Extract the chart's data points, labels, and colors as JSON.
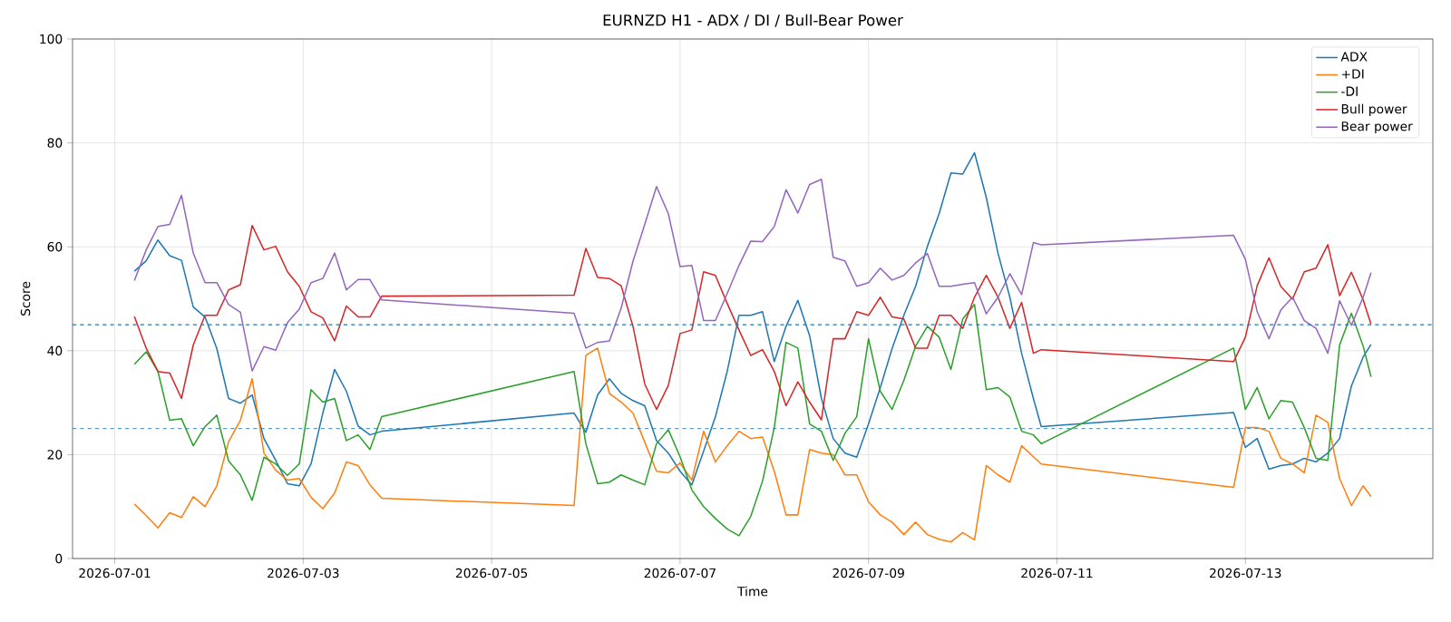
{
  "chart_data": {
    "type": "line",
    "title": "EURNZD H1 - ADX / DI / Bull-Bear Power",
    "xlabel": "Time",
    "ylabel": "Score",
    "x": [
      "2026-07-01T05:00",
      "2026-07-01T08:00",
      "2026-07-01T11:00",
      "2026-07-01T14:00",
      "2026-07-01T17:00",
      "2026-07-01T20:00",
      "2026-07-01T23:00",
      "2026-07-02T02:00",
      "2026-07-02T05:00",
      "2026-07-02T08:00",
      "2026-07-02T11:00",
      "2026-07-02T14:00",
      "2026-07-02T17:00",
      "2026-07-02T20:00",
      "2026-07-02T23:00",
      "2026-07-03T02:00",
      "2026-07-03T05:00",
      "2026-07-03T08:00",
      "2026-07-03T11:00",
      "2026-07-03T14:00",
      "2026-07-03T17:00",
      "2026-07-03T20:00",
      "2026-07-05T21:00",
      "2026-07-06T00:00",
      "2026-07-06T03:00",
      "2026-07-06T06:00",
      "2026-07-06T09:00",
      "2026-07-06T12:00",
      "2026-07-06T15:00",
      "2026-07-06T18:00",
      "2026-07-06T21:00",
      "2026-07-07T00:00",
      "2026-07-07T03:00",
      "2026-07-07T06:00",
      "2026-07-07T09:00",
      "2026-07-07T12:00",
      "2026-07-07T15:00",
      "2026-07-07T18:00",
      "2026-07-07T21:00",
      "2026-07-08T00:00",
      "2026-07-08T03:00",
      "2026-07-08T06:00",
      "2026-07-08T09:00",
      "2026-07-08T12:00",
      "2026-07-08T15:00",
      "2026-07-08T18:00",
      "2026-07-08T21:00",
      "2026-07-09T00:00",
      "2026-07-09T03:00",
      "2026-07-09T06:00",
      "2026-07-09T09:00",
      "2026-07-09T12:00",
      "2026-07-09T15:00",
      "2026-07-09T18:00",
      "2026-07-09T21:00",
      "2026-07-10T00:00",
      "2026-07-10T03:00",
      "2026-07-10T06:00",
      "2026-07-10T09:00",
      "2026-07-10T12:00",
      "2026-07-10T15:00",
      "2026-07-10T18:00",
      "2026-07-10T20:00",
      "2026-07-12T21:00",
      "2026-07-13T00:00",
      "2026-07-13T03:00",
      "2026-07-13T06:00",
      "2026-07-13T09:00",
      "2026-07-13T12:00",
      "2026-07-13T15:00",
      "2026-07-13T18:00",
      "2026-07-13T21:00",
      "2026-07-14T00:00",
      "2026-07-14T03:00",
      "2026-07-14T06:00",
      "2026-07-14T08:00"
    ],
    "series": [
      {
        "name": "ADX",
        "color": "#1f77b4",
        "values": [
          55.3,
          57.3,
          61.3,
          58.3,
          57.4,
          48.4,
          46.5,
          40.4,
          30.8,
          29.9,
          31.5,
          23.1,
          18.9,
          14.4,
          14.0,
          18.2,
          28.0,
          36.4,
          32.2,
          25.5,
          23.8,
          24.5,
          28.0,
          24.3,
          31.5,
          34.6,
          31.8,
          30.4,
          29.4,
          22.7,
          20.3,
          16.8,
          14.2,
          20.7,
          27.3,
          36.0,
          46.8,
          46.8,
          47.5,
          37.9,
          44.7,
          49.7,
          42.9,
          30.8,
          23.1,
          20.3,
          19.5,
          25.9,
          32.9,
          40.4,
          46.8,
          52.4,
          60.1,
          66.4,
          74.2,
          74.0,
          78.1,
          69.5,
          58.7,
          50.3,
          39.5,
          30.8,
          25.4,
          28.1,
          21.4,
          23.1,
          17.2,
          17.9,
          18.2,
          19.3,
          18.6,
          20.3,
          23.1,
          33.2,
          38.8,
          41.2
        ]
      },
      {
        "name": "+DI",
        "color": "#ff7f0e",
        "values": [
          10.5,
          8.3,
          5.9,
          8.8,
          7.9,
          11.9,
          10.0,
          14.0,
          22.5,
          26.6,
          34.6,
          20.3,
          17.0,
          15.1,
          15.4,
          11.8,
          9.6,
          12.6,
          18.6,
          17.9,
          14.2,
          11.6,
          10.2,
          39.1,
          40.5,
          31.8,
          30.1,
          28.0,
          22.4,
          16.8,
          16.5,
          18.4,
          15.1,
          24.5,
          18.6,
          21.7,
          24.5,
          23.1,
          23.4,
          16.8,
          8.4,
          8.4,
          21.0,
          20.3,
          20.0,
          16.1,
          16.1,
          10.9,
          8.4,
          7.0,
          4.6,
          7.0,
          4.6,
          3.7,
          3.2,
          5.0,
          3.6,
          17.9,
          16.1,
          14.7,
          21.7,
          19.6,
          18.2,
          13.7,
          25.2,
          25.2,
          24.5,
          19.3,
          18.2,
          16.5,
          27.6,
          26.2,
          15.4,
          10.2,
          14.0,
          11.9
        ]
      },
      {
        "name": "-DI",
        "color": "#2ca02c",
        "values": [
          37.4,
          39.8,
          36.0,
          26.6,
          26.9,
          21.7,
          25.4,
          27.6,
          18.8,
          16.1,
          11.2,
          19.5,
          18.2,
          16.0,
          18.2,
          32.5,
          30.1,
          30.8,
          22.7,
          23.8,
          21.0,
          27.3,
          36.0,
          22.1,
          14.4,
          14.7,
          16.1,
          15.1,
          14.2,
          22.1,
          24.8,
          19.6,
          13.2,
          10.0,
          7.7,
          5.7,
          4.4,
          8.1,
          14.9,
          25.2,
          41.6,
          40.5,
          25.9,
          24.5,
          18.9,
          24.1,
          27.3,
          42.3,
          32.2,
          28.7,
          34.3,
          40.9,
          44.7,
          42.6,
          36.4,
          46.1,
          48.9,
          32.5,
          32.9,
          31.1,
          24.5,
          23.8,
          22.1,
          40.5,
          28.7,
          32.9,
          26.9,
          30.4,
          30.1,
          25.2,
          19.3,
          18.9,
          41.1,
          47.2,
          40.9,
          35.0
        ]
      },
      {
        "name": "Bull power",
        "color": "#d62728",
        "values": [
          46.6,
          40.5,
          36.0,
          35.7,
          30.8,
          41.1,
          46.8,
          46.8,
          51.7,
          52.7,
          64.1,
          59.4,
          60.1,
          55.2,
          52.4,
          47.5,
          46.3,
          41.9,
          48.6,
          46.5,
          46.5,
          50.5,
          50.7,
          59.7,
          54.1,
          53.9,
          52.5,
          44.7,
          33.6,
          28.7,
          33.3,
          43.3,
          44.0,
          55.2,
          54.5,
          49.1,
          44.0,
          39.1,
          40.2,
          36.0,
          29.4,
          34.0,
          30.1,
          26.7,
          42.3,
          42.3,
          47.5,
          46.8,
          50.3,
          46.5,
          46.1,
          40.5,
          40.5,
          46.8,
          46.8,
          44.3,
          50.3,
          54.5,
          50.3,
          44.3,
          49.3,
          39.5,
          40.2,
          37.9,
          42.6,
          52.5,
          57.9,
          52.4,
          49.9,
          55.2,
          55.9,
          60.4,
          50.6,
          55.1,
          49.8,
          45.1
        ]
      },
      {
        "name": "Bear power",
        "color": "#9467bd",
        "values": [
          53.5,
          59.4,
          63.9,
          64.3,
          69.9,
          58.8,
          53.1,
          53.1,
          48.9,
          47.4,
          36.1,
          40.8,
          40.1,
          45.4,
          48.0,
          53.1,
          53.9,
          58.8,
          51.7,
          53.7,
          53.7,
          49.8,
          47.2,
          40.5,
          41.6,
          41.9,
          48.2,
          57.2,
          64.3,
          71.6,
          66.4,
          56.2,
          56.4,
          45.8,
          45.8,
          51.0,
          56.4,
          61.1,
          61.0,
          63.9,
          71.0,
          66.5,
          72.0,
          73.0,
          58.0,
          57.3,
          52.4,
          53.1,
          55.9,
          53.6,
          54.5,
          56.9,
          58.7,
          52.4,
          52.4,
          52.8,
          53.1,
          47.1,
          50.3,
          54.8,
          50.8,
          60.8,
          60.4,
          62.2,
          57.6,
          47.5,
          42.3,
          47.8,
          50.3,
          45.8,
          44.3,
          39.5,
          49.6,
          44.9,
          50.3,
          55.0
        ]
      }
    ],
    "ref_lines": [
      {
        "axis": "y",
        "value": 45,
        "color": "#1f77b4",
        "line_style": "dashed"
      },
      {
        "axis": "y",
        "value": 25,
        "color": "#1f77b4",
        "line_style": "dashed"
      }
    ],
    "xlim": [
      "2026-06-30T13:15",
      "2026-07-14T23:45"
    ],
    "xticks": [
      "2026-07-01",
      "2026-07-03",
      "2026-07-05",
      "2026-07-07",
      "2026-07-09",
      "2026-07-11",
      "2026-07-13"
    ],
    "ylim": [
      0,
      100
    ],
    "yticks": [
      0,
      20,
      40,
      60,
      80,
      100
    ],
    "grid": true,
    "legend": "top right"
  }
}
